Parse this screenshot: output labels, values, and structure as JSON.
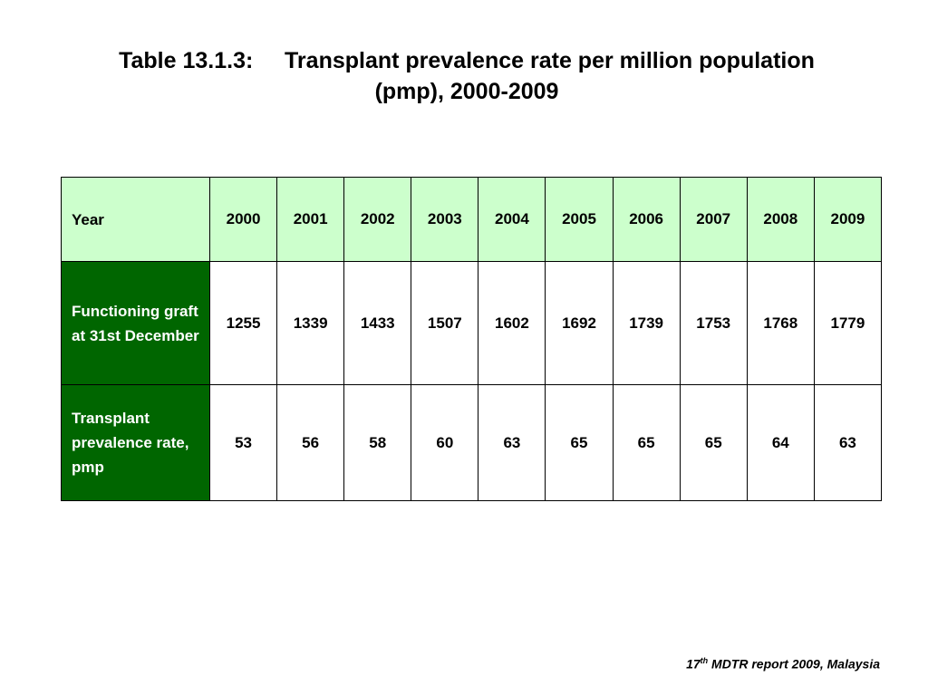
{
  "title": {
    "line1": "Table 13.1.3:     Transplant prevalence rate per million population",
    "line2": "(pmp), 2000-2009"
  },
  "table": {
    "header": {
      "label": "Year",
      "values": [
        "2000",
        "2001",
        "2002",
        "2003",
        "2004",
        "2005",
        "2006",
        "2007",
        "2008",
        "2009"
      ]
    },
    "rows": [
      {
        "label": "Functioning graft at 31st December",
        "values": [
          "1255",
          "1339",
          "1433",
          "1507",
          "1602",
          "1692",
          "1739",
          "1753",
          "1768",
          "1779"
        ]
      },
      {
        "label": "Transplant prevalence rate, pmp",
        "values": [
          "53",
          "56",
          "58",
          "60",
          "63",
          "65",
          "65",
          "65",
          "64",
          "63"
        ]
      }
    ]
  },
  "source": {
    "prefix": "17",
    "superscript": "th",
    "suffix": " MDTR report 2009, Malaysia"
  },
  "colors": {
    "header_bg": "#ccffcc",
    "label_bg": "#006600",
    "label_text": "#ffffff"
  }
}
